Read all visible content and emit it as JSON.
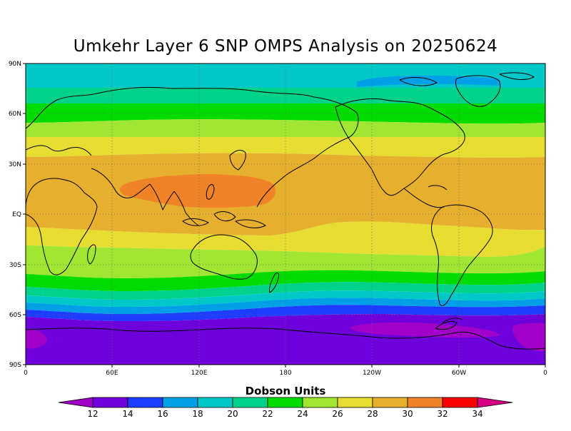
{
  "title": "Umkehr Layer 6 SNP OMPS Analysis on 20250624",
  "lat_labels": [
    "90N",
    "60N",
    "30N",
    "EQ",
    "30S",
    "60S",
    "90S"
  ],
  "lon_labels": [
    "0",
    "60E",
    "120E",
    "180",
    "120W",
    "60W",
    "0"
  ],
  "colorbar": {
    "title": "Dobson Units",
    "ticks": [
      "12",
      "14",
      "16",
      "18",
      "20",
      "22",
      "24",
      "26",
      "28",
      "30",
      "32",
      "34"
    ],
    "colors": [
      "#a000c8",
      "#6e00dc",
      "#1e3cff",
      "#00a0e6",
      "#00c8c8",
      "#00d28c",
      "#00dc00",
      "#a0e632",
      "#e6dc32",
      "#e6af2d",
      "#f08228",
      "#fa0000",
      "#d70082"
    ]
  },
  "chart_data": {
    "type": "heatmap",
    "title": "Umkehr Layer 6 SNP OMPS Analysis on 20250624",
    "units": "Dobson Units",
    "x_ticks": [
      "0",
      "60E",
      "120E",
      "180",
      "120W",
      "60W",
      "0"
    ],
    "y_ticks": [
      "90N",
      "60N",
      "30N",
      "EQ",
      "30S",
      "60S",
      "90S"
    ],
    "levels": [
      12,
      14,
      16,
      18,
      20,
      22,
      24,
      26,
      28,
      30,
      32,
      34
    ],
    "grid": true,
    "zonal_bands": [
      {
        "lat_range": [
          75,
          90
        ],
        "value": 20
      },
      {
        "lat_range": [
          67,
          75
        ],
        "value": 22
      },
      {
        "lat_range": [
          55,
          67
        ],
        "value": 24
      },
      {
        "lat_range": [
          45,
          55
        ],
        "value": 26
      },
      {
        "lat_range": [
          35,
          45
        ],
        "value": 28
      },
      {
        "lat_range": [
          -10,
          35
        ],
        "value": 30
      },
      {
        "lat_range": [
          -22,
          -10
        ],
        "value": 28
      },
      {
        "lat_range": [
          -35,
          -22
        ],
        "value": 26
      },
      {
        "lat_range": [
          -42,
          -35
        ],
        "value": 24
      },
      {
        "lat_range": [
          -47,
          -42
        ],
        "value": 22
      },
      {
        "lat_range": [
          -51,
          -47
        ],
        "value": 20
      },
      {
        "lat_range": [
          -54,
          -51
        ],
        "value": 18
      },
      {
        "lat_range": [
          -60,
          -54
        ],
        "value": 16
      },
      {
        "lat_range": [
          -90,
          -60
        ],
        "value": 14
      }
    ],
    "features": [
      {
        "region": "tropical western Pacific / South Asia",
        "value": 32
      },
      {
        "region": "Antarctic (Weddell/Ross sectors)",
        "value": 12
      }
    ]
  }
}
